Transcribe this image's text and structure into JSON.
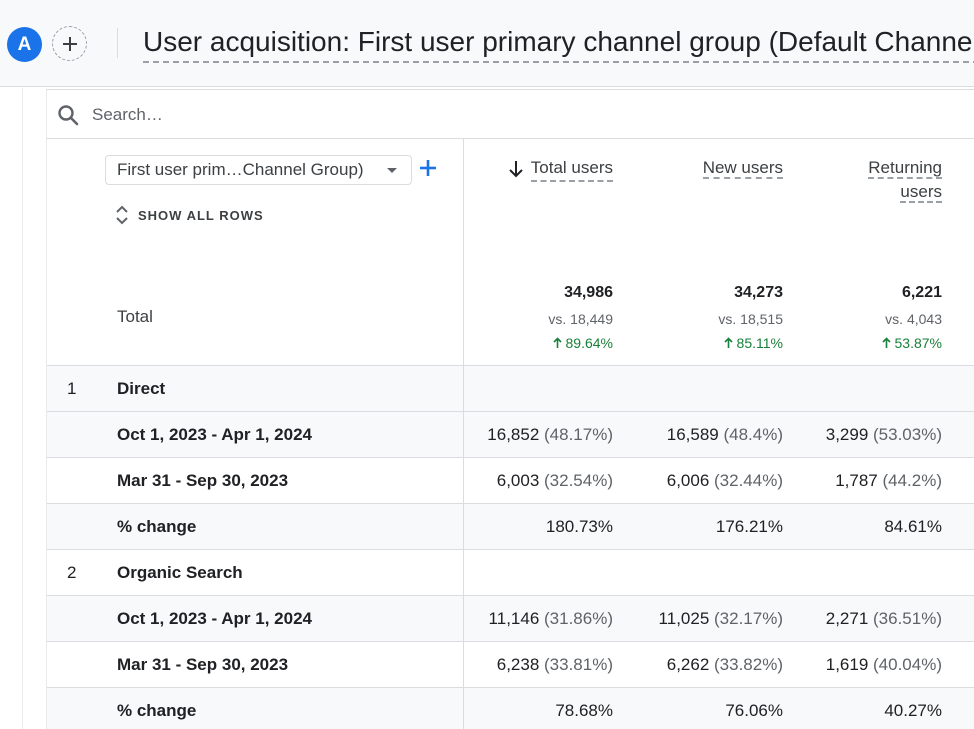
{
  "header": {
    "avatar_letter": "A",
    "title": "User acquisition: First user primary channel group (Default Channel"
  },
  "search": {
    "placeholder": "Search…"
  },
  "dimension": {
    "selected": "First user prim…Channel Group)",
    "show_all_rows": "SHOW ALL ROWS"
  },
  "columns": [
    {
      "label": "Total users",
      "sorted": "desc"
    },
    {
      "label": "New users"
    },
    {
      "label": "Returning users",
      "line1": "Returning",
      "line2": "users"
    }
  ],
  "totals": {
    "label": "Total",
    "values": [
      {
        "value": "34,986",
        "vs": "vs. 18,449",
        "change": "89.64%"
      },
      {
        "value": "34,273",
        "vs": "vs. 18,515",
        "change": "85.11%"
      },
      {
        "value": "6,221",
        "vs": "vs. 4,043",
        "change": "53.87%"
      }
    ]
  },
  "rows": [
    {
      "index": "1",
      "name": "Direct"
    },
    {
      "name": "Oct 1, 2023 - Apr 1, 2024",
      "cells": [
        [
          "16,852",
          "(48.17%)"
        ],
        [
          "16,589",
          "(48.4%)"
        ],
        [
          "3,299",
          "(53.03%)"
        ]
      ]
    },
    {
      "name": "Mar 31 - Sep 30, 2023",
      "cells": [
        [
          "6,003",
          "(32.54%)"
        ],
        [
          "6,006",
          "(32.44%)"
        ],
        [
          "1,787",
          "(44.2%)"
        ]
      ]
    },
    {
      "name": "% change",
      "cells": [
        [
          "180.73%",
          ""
        ],
        [
          "176.21%",
          ""
        ],
        [
          "84.61%",
          ""
        ]
      ]
    },
    {
      "index": "2",
      "name": "Organic Search"
    },
    {
      "name": "Oct 1, 2023 - Apr 1, 2024",
      "cells": [
        [
          "11,146",
          "(31.86%)"
        ],
        [
          "11,025",
          "(32.17%)"
        ],
        [
          "2,271",
          "(36.51%)"
        ]
      ]
    },
    {
      "name": "Mar 31 - Sep 30, 2023",
      "cells": [
        [
          "6,238",
          "(33.81%)"
        ],
        [
          "6,262",
          "(33.82%)"
        ],
        [
          "1,619",
          "(40.04%)"
        ]
      ]
    },
    {
      "name": "% change",
      "cells": [
        [
          "78.68%",
          ""
        ],
        [
          "76.06%",
          ""
        ],
        [
          "40.27%",
          ""
        ]
      ]
    }
  ],
  "colors": {
    "accent": "#1a73e8",
    "positive": "#188038",
    "shade": "#f8f9fa"
  }
}
